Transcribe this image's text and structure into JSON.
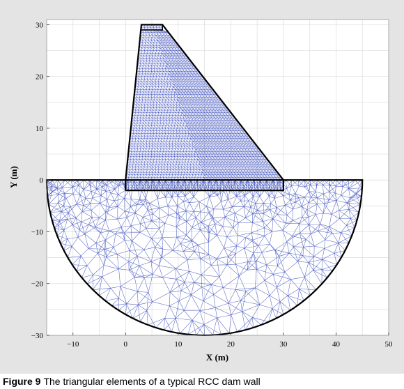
{
  "caption": {
    "label": "Figure 9",
    "text": "The triangular elements of a typical RCC dam wall"
  },
  "axes": {
    "xlabel": "X (m)",
    "ylabel": "Y (m)",
    "xlim": [
      -15,
      50
    ],
    "ylim": [
      -30,
      31
    ],
    "xticks": [
      -10,
      0,
      10,
      20,
      30,
      40,
      50
    ],
    "yticks": [
      -30,
      -20,
      -10,
      0,
      10,
      20,
      30
    ],
    "grid": true
  },
  "dam": {
    "outline": [
      [
        0,
        -2
      ],
      [
        30,
        -2
      ],
      [
        30,
        0
      ],
      [
        7,
        30
      ],
      [
        3,
        30
      ],
      [
        0,
        0
      ],
      [
        0,
        -2
      ]
    ],
    "crest_step": [
      [
        3,
        30
      ],
      [
        7,
        30
      ],
      [
        7,
        29
      ],
      [
        3,
        29
      ]
    ]
  },
  "foundation": {
    "center": [
      15,
      0
    ],
    "radius": 30
  },
  "colors": {
    "figure_background": "#e4e4e4",
    "plot_background": "#ffffff",
    "mesh": "#2b3fb6",
    "outline": "#000000",
    "grid": "#dcdcdc"
  }
}
